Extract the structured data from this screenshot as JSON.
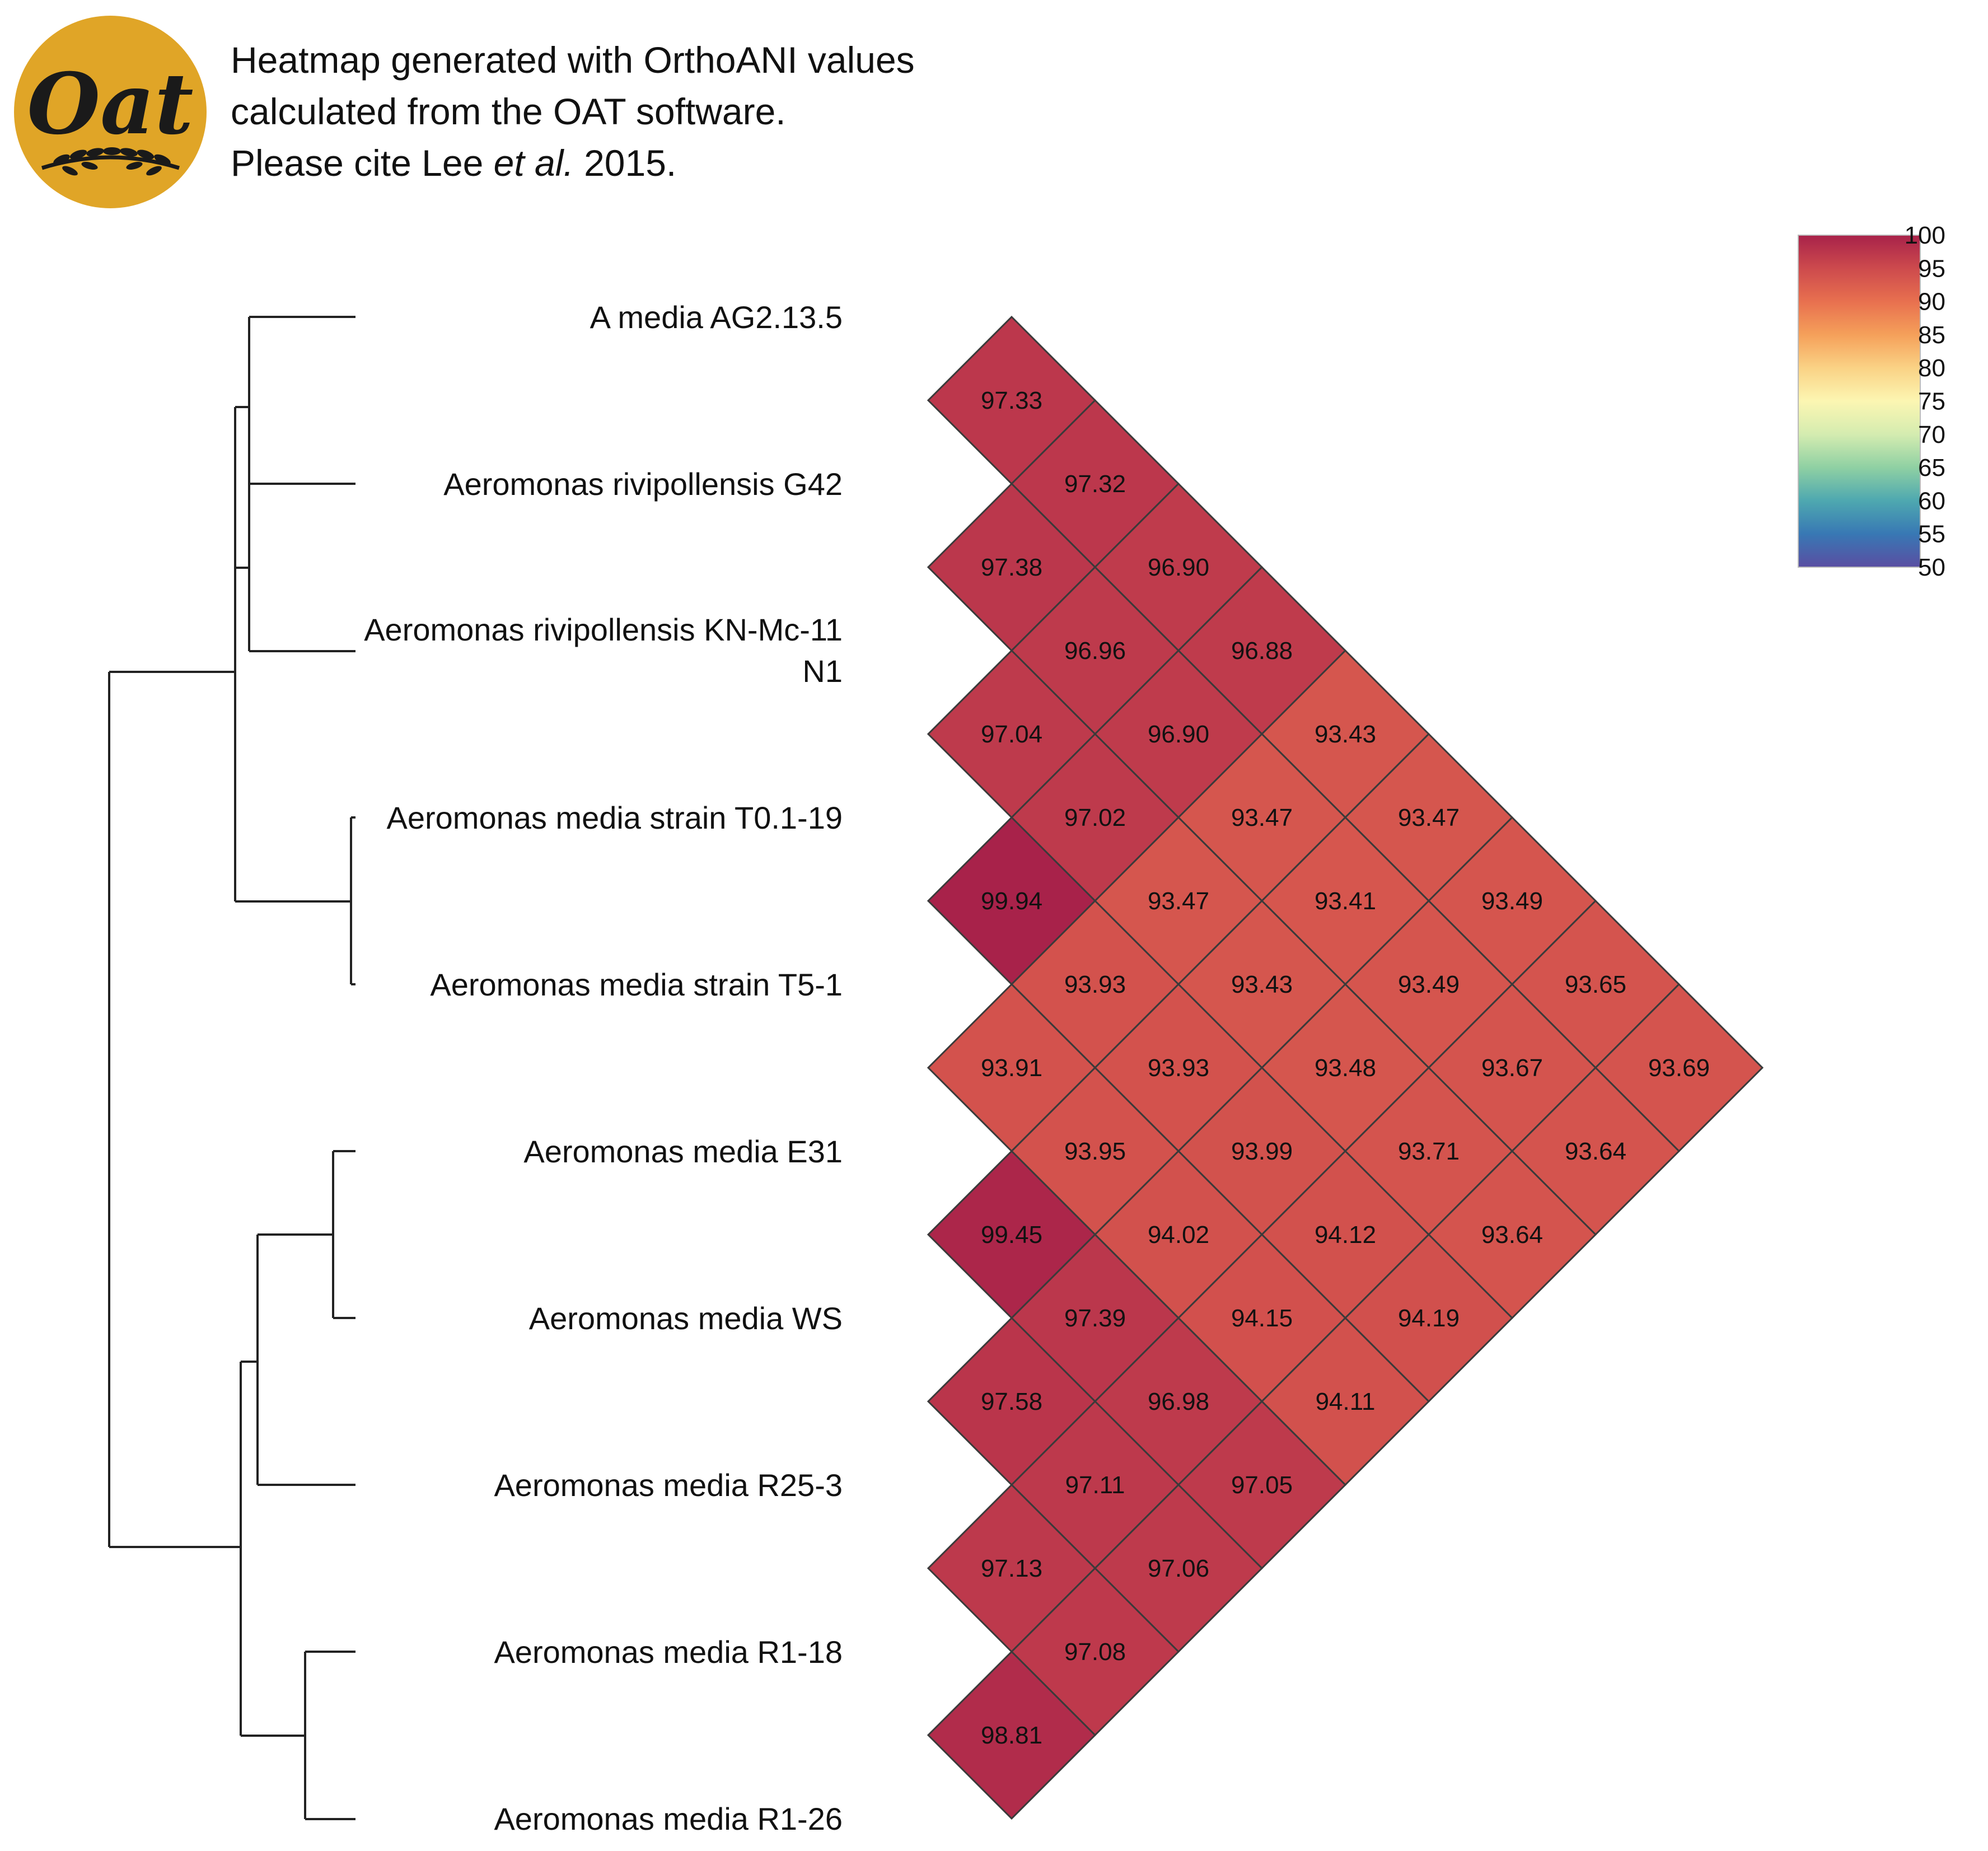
{
  "header": {
    "logo_text": "Oat",
    "line1": "Heatmap generated with OrthoANI values",
    "line2": "calculated from the OAT software.",
    "line3_prefix": "Please cite Lee ",
    "line3_italic": "et al.",
    "line3_suffix": " 2015."
  },
  "chart_data": {
    "type": "heatmap",
    "title": "Heatmap generated with OrthoANI values calculated from the OAT software.",
    "strains": [
      [
        "A media AG2.13.5"
      ],
      [
        "Aeromonas rivipollensis G42"
      ],
      [
        "Aeromonas rivipollensis KN-Mc-11",
        "N1"
      ],
      [
        "Aeromonas media strain T0.1-19"
      ],
      [
        "Aeromonas media strain T5-1"
      ],
      [
        "Aeromonas media E31"
      ],
      [
        "Aeromonas media WS"
      ],
      [
        "Aeromonas media R25-3"
      ],
      [
        "Aeromonas media R1-18"
      ],
      [
        "Aeromonas media R1-26"
      ]
    ],
    "cells": [
      {
        "i": 0,
        "j": 1,
        "value": 97.33,
        "label": "97.33"
      },
      {
        "i": 0,
        "j": 2,
        "value": 97.32,
        "label": "97.32"
      },
      {
        "i": 0,
        "j": 3,
        "value": 96.9,
        "label": "96.90"
      },
      {
        "i": 0,
        "j": 4,
        "value": 96.88,
        "label": "96.88"
      },
      {
        "i": 0,
        "j": 5,
        "value": 93.43,
        "label": "93.43"
      },
      {
        "i": 0,
        "j": 6,
        "value": 93.47,
        "label": "93.47"
      },
      {
        "i": 0,
        "j": 7,
        "value": 93.49,
        "label": "93.49"
      },
      {
        "i": 0,
        "j": 8,
        "value": 93.65,
        "label": "93.65"
      },
      {
        "i": 0,
        "j": 9,
        "value": 93.69,
        "label": "93.69"
      },
      {
        "i": 1,
        "j": 2,
        "value": 97.38,
        "label": "97.38"
      },
      {
        "i": 1,
        "j": 3,
        "value": 96.96,
        "label": "96.96"
      },
      {
        "i": 1,
        "j": 4,
        "value": 96.9,
        "label": "96.90"
      },
      {
        "i": 1,
        "j": 5,
        "value": 93.47,
        "label": "93.47"
      },
      {
        "i": 1,
        "j": 6,
        "value": 93.41,
        "label": "93.41"
      },
      {
        "i": 1,
        "j": 7,
        "value": 93.49,
        "label": "93.49"
      },
      {
        "i": 1,
        "j": 8,
        "value": 93.67,
        "label": "93.67"
      },
      {
        "i": 1,
        "j": 9,
        "value": 93.64,
        "label": "93.64"
      },
      {
        "i": 2,
        "j": 3,
        "value": 97.04,
        "label": "97.04"
      },
      {
        "i": 2,
        "j": 4,
        "value": 97.02,
        "label": "97.02"
      },
      {
        "i": 2,
        "j": 5,
        "value": 93.47,
        "label": "93.47"
      },
      {
        "i": 2,
        "j": 6,
        "value": 93.43,
        "label": "93.43"
      },
      {
        "i": 2,
        "j": 7,
        "value": 93.48,
        "label": "93.48"
      },
      {
        "i": 2,
        "j": 8,
        "value": 93.71,
        "label": "93.71"
      },
      {
        "i": 2,
        "j": 9,
        "value": 93.64,
        "label": "93.64"
      },
      {
        "i": 3,
        "j": 4,
        "value": 99.94,
        "label": "99.94"
      },
      {
        "i": 3,
        "j": 5,
        "value": 93.93,
        "label": "93.93"
      },
      {
        "i": 3,
        "j": 6,
        "value": 93.93,
        "label": "93.93"
      },
      {
        "i": 3,
        "j": 7,
        "value": 93.99,
        "label": "93.99"
      },
      {
        "i": 3,
        "j": 8,
        "value": 94.12,
        "label": "94.12"
      },
      {
        "i": 3,
        "j": 9,
        "value": 94.19,
        "label": "94.19"
      },
      {
        "i": 4,
        "j": 5,
        "value": 93.91,
        "label": "93.91"
      },
      {
        "i": 4,
        "j": 6,
        "value": 93.95,
        "label": "93.95"
      },
      {
        "i": 4,
        "j": 7,
        "value": 94.02,
        "label": "94.02"
      },
      {
        "i": 4,
        "j": 8,
        "value": 94.15,
        "label": "94.15"
      },
      {
        "i": 4,
        "j": 9,
        "value": 94.11,
        "label": "94.11"
      },
      {
        "i": 5,
        "j": 6,
        "value": 99.45,
        "label": "99.45"
      },
      {
        "i": 5,
        "j": 7,
        "value": 97.39,
        "label": "97.39"
      },
      {
        "i": 5,
        "j": 8,
        "value": 96.98,
        "label": "96.98"
      },
      {
        "i": 5,
        "j": 9,
        "value": 97.05,
        "label": "97.05"
      },
      {
        "i": 6,
        "j": 7,
        "value": 97.58,
        "label": "97.58"
      },
      {
        "i": 6,
        "j": 8,
        "value": 97.11,
        "label": "97.11"
      },
      {
        "i": 6,
        "j": 9,
        "value": 97.06,
        "label": "97.06"
      },
      {
        "i": 7,
        "j": 8,
        "value": 97.13,
        "label": "97.13"
      },
      {
        "i": 7,
        "j": 9,
        "value": 97.08,
        "label": "97.08"
      },
      {
        "i": 8,
        "j": 9,
        "value": 98.81,
        "label": "98.81"
      }
    ],
    "dendrogram": {
      "leaves": 10,
      "merges": [
        {
          "a": "L3",
          "b": "L4",
          "height": 0.02
        },
        {
          "a": "L1",
          "b": "L2",
          "height": 0.88
        },
        {
          "a": "L0",
          "b": "N1",
          "height": 0.9
        },
        {
          "a": "N2",
          "b": "N0",
          "height": 0.97
        },
        {
          "a": "L5",
          "b": "L6",
          "height": 0.17
        },
        {
          "a": "L8",
          "b": "L9",
          "height": 0.38
        },
        {
          "a": "L7",
          "b": "N4",
          "height": 0.85
        },
        {
          "a": "N6",
          "b": "N4b",
          "height": 0.87
        },
        {
          "a": "N7",
          "b": "N5",
          "height": 0.92
        },
        {
          "a": "N3",
          "b": "N8",
          "height": 1.0
        }
      ]
    },
    "colorbar": {
      "min": 50,
      "max": 100,
      "ticks": [
        "100",
        "95",
        "90",
        "85",
        "80",
        "75",
        "70",
        "65",
        "60",
        "55",
        "50"
      ],
      "stops": [
        {
          "value": 100,
          "color": "#a8224a"
        },
        {
          "value": 95,
          "color": "#cd4a4d"
        },
        {
          "value": 90,
          "color": "#e8704f"
        },
        {
          "value": 85,
          "color": "#f5a05a"
        },
        {
          "value": 80,
          "color": "#fad285"
        },
        {
          "value": 75,
          "color": "#fcf6b2"
        },
        {
          "value": 70,
          "color": "#d4ecb0"
        },
        {
          "value": 65,
          "color": "#8fd0a3"
        },
        {
          "value": 60,
          "color": "#4ea8b0"
        },
        {
          "value": 55,
          "color": "#3878b4"
        },
        {
          "value": 50,
          "color": "#5a4ea2"
        }
      ]
    }
  },
  "colors": {
    "logo_bg": "#e0a527",
    "logo_fg": "#1a1a1a",
    "grid": "#3a3a3a",
    "line": "#222222"
  }
}
